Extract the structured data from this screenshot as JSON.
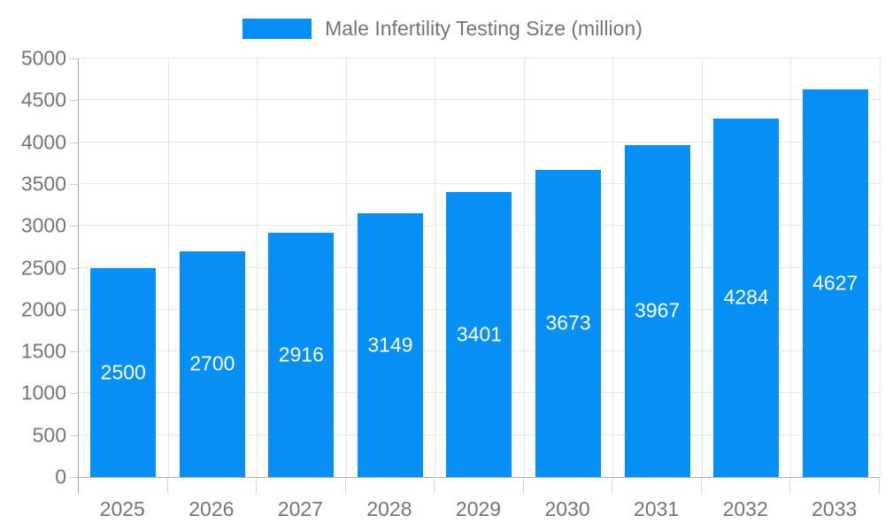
{
  "chart_data": {
    "type": "bar",
    "title": "",
    "legend": "Male Infertility Testing Size (million)",
    "legend_position": "top",
    "categories": [
      "2025",
      "2026",
      "2027",
      "2028",
      "2029",
      "2030",
      "2031",
      "2032",
      "2033"
    ],
    "values": [
      2500,
      2700,
      2916,
      3149,
      3401,
      3673,
      3967,
      4284,
      4627
    ],
    "xlabel": "",
    "ylabel": "",
    "ylim": [
      0,
      5000
    ],
    "y_ticks": [
      0,
      500,
      1000,
      1500,
      2000,
      2500,
      3000,
      3500,
      4000,
      4500,
      5000
    ],
    "grid": true,
    "colors": {
      "bar": "#0690f5",
      "bar_value_label": "#ffffff",
      "axis_text": "#757575",
      "gridline": "#e6e6e6"
    }
  }
}
